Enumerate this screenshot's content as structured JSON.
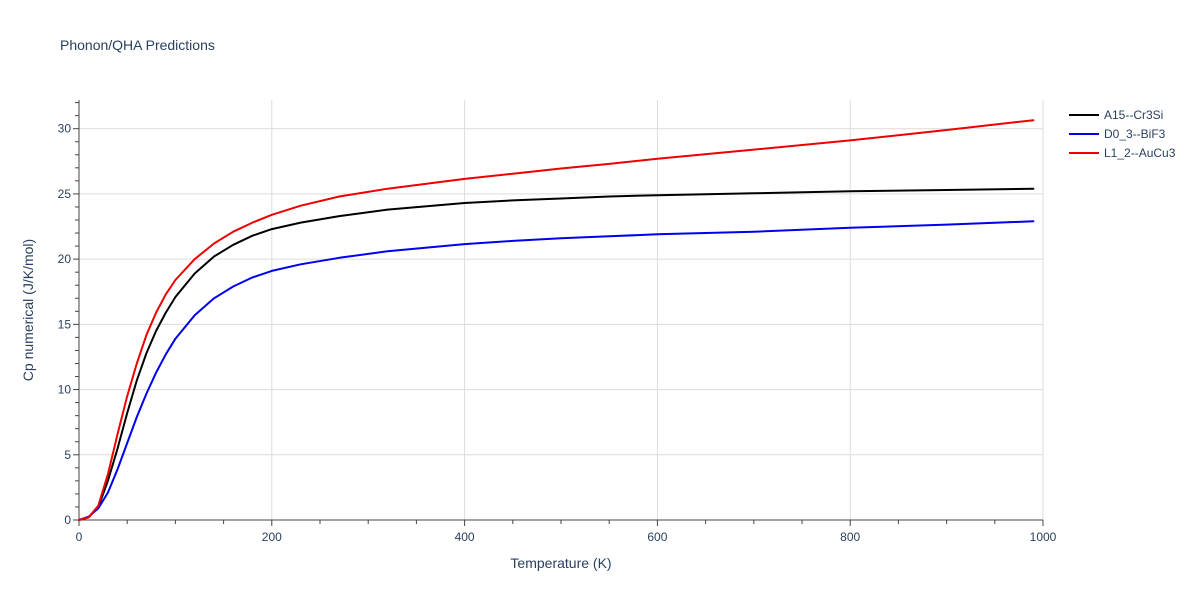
{
  "chart_data": {
    "type": "line",
    "title": "Phonon/QHA Predictions",
    "xlabel": "Temperature (K)",
    "ylabel": "Cp numerical (J/K/mol)",
    "xlim": [
      0,
      1000
    ],
    "ylim": [
      0,
      32.2
    ],
    "xticks": [
      0,
      200,
      400,
      600,
      800,
      1000
    ],
    "yticks": [
      0,
      5,
      10,
      15,
      20,
      25,
      30
    ],
    "grid": true,
    "legend_position": "top-right",
    "series": [
      {
        "name": "A15--Cr3Si",
        "color": "#000000",
        "x": [
          0,
          10,
          20,
          30,
          40,
          50,
          60,
          70,
          80,
          90,
          100,
          120,
          140,
          160,
          180,
          200,
          230,
          270,
          320,
          400,
          450,
          500,
          550,
          600,
          700,
          800,
          900,
          990
        ],
        "y": [
          0,
          0.2,
          1.0,
          3.0,
          5.5,
          8.2,
          10.7,
          12.8,
          14.5,
          15.9,
          17.1,
          18.9,
          20.2,
          21.1,
          21.8,
          22.3,
          22.8,
          23.3,
          23.8,
          24.3,
          24.5,
          24.65,
          24.8,
          24.9,
          25.05,
          25.2,
          25.3,
          25.4
        ]
      },
      {
        "name": "D0_3--BiF3",
        "color": "#0000ee",
        "x": [
          0,
          10,
          20,
          30,
          40,
          50,
          60,
          70,
          80,
          90,
          100,
          120,
          140,
          160,
          180,
          200,
          230,
          270,
          320,
          400,
          450,
          500,
          550,
          600,
          700,
          800,
          900,
          990
        ],
        "y": [
          0,
          0.25,
          0.9,
          2.1,
          3.9,
          5.9,
          7.9,
          9.7,
          11.3,
          12.7,
          13.9,
          15.7,
          17.0,
          17.9,
          18.6,
          19.1,
          19.6,
          20.1,
          20.6,
          21.15,
          21.4,
          21.6,
          21.75,
          21.9,
          22.1,
          22.4,
          22.65,
          22.9
        ]
      },
      {
        "name": "L1_2--AuCu3",
        "color": "#ee0000",
        "x": [
          0,
          10,
          20,
          30,
          40,
          50,
          60,
          70,
          80,
          90,
          100,
          120,
          140,
          160,
          180,
          200,
          230,
          270,
          320,
          400,
          450,
          500,
          550,
          600,
          700,
          800,
          900,
          990
        ],
        "y": [
          0,
          0.2,
          1.1,
          3.5,
          6.6,
          9.5,
          12.0,
          14.2,
          15.9,
          17.3,
          18.4,
          20.0,
          21.2,
          22.1,
          22.8,
          23.4,
          24.1,
          24.8,
          25.4,
          26.15,
          26.55,
          26.95,
          27.3,
          27.7,
          28.4,
          29.1,
          29.9,
          30.65
        ]
      }
    ]
  }
}
